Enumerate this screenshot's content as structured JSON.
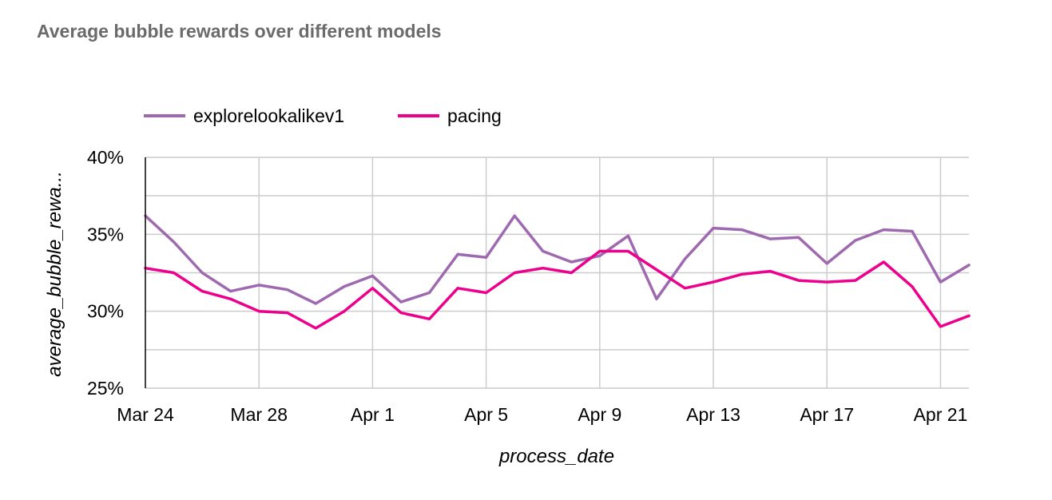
{
  "title": "Average bubble rewards over different models",
  "chart_data": {
    "type": "line",
    "xlabel": "process_date",
    "ylabel": "average_bubble_rewa...",
    "ylim": [
      25,
      40
    ],
    "yticks": [
      "40%",
      "35%",
      "30%",
      "25%"
    ],
    "ytick_values": [
      40,
      35,
      30,
      25
    ],
    "xticks": [
      "Mar 24",
      "Mar 28",
      "Apr 1",
      "Apr 5",
      "Apr 9",
      "Apr 13",
      "Apr 17",
      "Apr 21"
    ],
    "grid": true,
    "legend_position": "top-left",
    "x": [
      "Mar 24",
      "Mar 25",
      "Mar 26",
      "Mar 27",
      "Mar 28",
      "Mar 29",
      "Mar 30",
      "Mar 31",
      "Apr 1",
      "Apr 2",
      "Apr 3",
      "Apr 4",
      "Apr 5",
      "Apr 6",
      "Apr 7",
      "Apr 8",
      "Apr 9",
      "Apr 10",
      "Apr 11",
      "Apr 12",
      "Apr 13",
      "Apr 14",
      "Apr 15",
      "Apr 16",
      "Apr 17",
      "Apr 18",
      "Apr 19",
      "Apr 20",
      "Apr 21",
      "Apr 22"
    ],
    "series": [
      {
        "name": "explorelookalikev1",
        "color": "#9e69af",
        "values": [
          36.2,
          34.5,
          32.5,
          31.3,
          31.7,
          31.4,
          30.5,
          31.6,
          32.3,
          30.6,
          31.2,
          33.7,
          33.5,
          36.2,
          33.9,
          33.2,
          33.6,
          34.9,
          30.8,
          33.4,
          35.4,
          35.3,
          34.7,
          34.8,
          33.1,
          34.6,
          35.3,
          35.2,
          31.9,
          33.0
        ]
      },
      {
        "name": "pacing",
        "color": "#ec008c",
        "values": [
          32.8,
          32.5,
          31.3,
          30.8,
          30.0,
          29.9,
          28.9,
          30.0,
          31.5,
          29.9,
          29.5,
          31.5,
          31.2,
          32.5,
          32.8,
          32.5,
          33.9,
          33.9,
          32.7,
          31.5,
          31.9,
          32.4,
          32.6,
          32.0,
          31.9,
          32.0,
          33.2,
          31.6,
          29.0,
          29.7
        ]
      }
    ]
  }
}
